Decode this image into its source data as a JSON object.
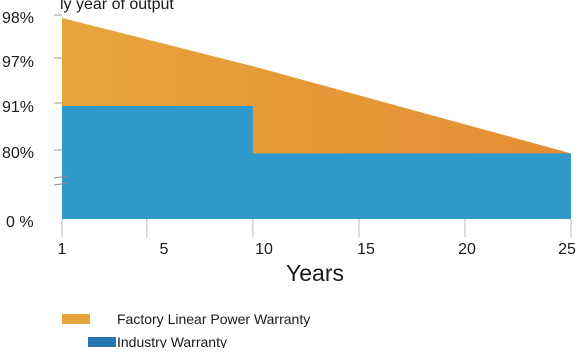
{
  "header": {
    "clipped_text": "ly year of output"
  },
  "chart_data": {
    "type": "area",
    "title": "",
    "xlabel": "Years",
    "ylabel": "",
    "x_ticks": [
      "1",
      "5",
      "10",
      "15",
      "20",
      "25"
    ],
    "y_ticks": [
      "0 %",
      "80%",
      "91%",
      "97%",
      "98%"
    ],
    "axis_break": true,
    "grid": false,
    "legend_position": "bottom-left",
    "series": [
      {
        "name": "Factory Linear Power Warranty",
        "color": "#e8a43c",
        "color_end": "#e38d34",
        "points": [
          {
            "x": 1,
            "y": 98
          },
          {
            "x": 10,
            "y": 96.3
          },
          {
            "x": 25,
            "y": 79.5
          }
        ]
      },
      {
        "name": "Industry Warranty",
        "color": "#2f99cc",
        "points": [
          {
            "x": 1,
            "y": 91
          },
          {
            "x": 10,
            "y": 91
          },
          {
            "x": 10,
            "y": 79.5
          },
          {
            "x": 25,
            "y": 79.5
          }
        ]
      }
    ],
    "legend": [
      {
        "label": "Factory Linear Power Warranty",
        "color": "#e8a43c"
      },
      {
        "label": "Industry Warranty",
        "color": "#2577b3"
      }
    ]
  }
}
